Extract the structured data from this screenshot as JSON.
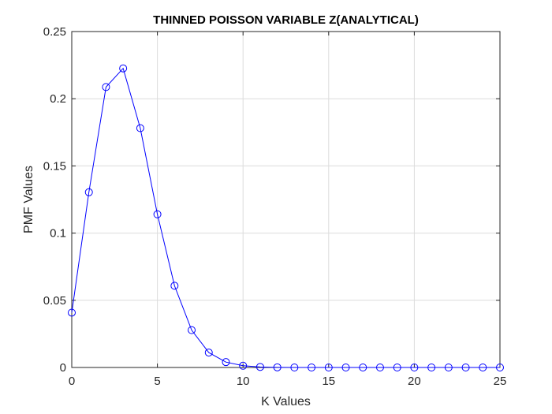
{
  "chart_data": {
    "type": "line",
    "title": "THINNED POISSON VARIABLE Z(ANALYTICAL)",
    "xlabel": "K Values",
    "ylabel": "PMF Values",
    "xlim": [
      0,
      25
    ],
    "ylim": [
      0,
      0.25
    ],
    "xticks": [
      0,
      5,
      10,
      15,
      20,
      25
    ],
    "xtick_labels": [
      "0",
      "5",
      "10",
      "15",
      "20",
      "25"
    ],
    "yticks": [
      0,
      0.05,
      0.1,
      0.15,
      0.2,
      0.25
    ],
    "ytick_labels": [
      "0",
      "0.05",
      "0.1",
      "0.15",
      "0.2",
      "0.25"
    ],
    "grid": true,
    "marker": "circle",
    "line_color": "#0000ff",
    "series": [
      {
        "x": [
          0,
          1,
          2,
          3,
          4,
          5,
          6,
          7,
          8,
          9,
          10,
          11,
          12,
          13,
          14,
          15,
          16,
          17,
          18,
          19,
          20,
          21,
          22,
          23,
          24,
          25
        ],
        "values": [
          0.0408,
          0.1304,
          0.2087,
          0.2226,
          0.1781,
          0.114,
          0.0608,
          0.0278,
          0.0111,
          0.004,
          0.0013,
          0.0004,
          0.0001,
          0,
          0,
          0,
          0,
          0,
          0,
          0,
          0,
          0,
          0,
          0,
          0,
          0
        ]
      }
    ]
  }
}
